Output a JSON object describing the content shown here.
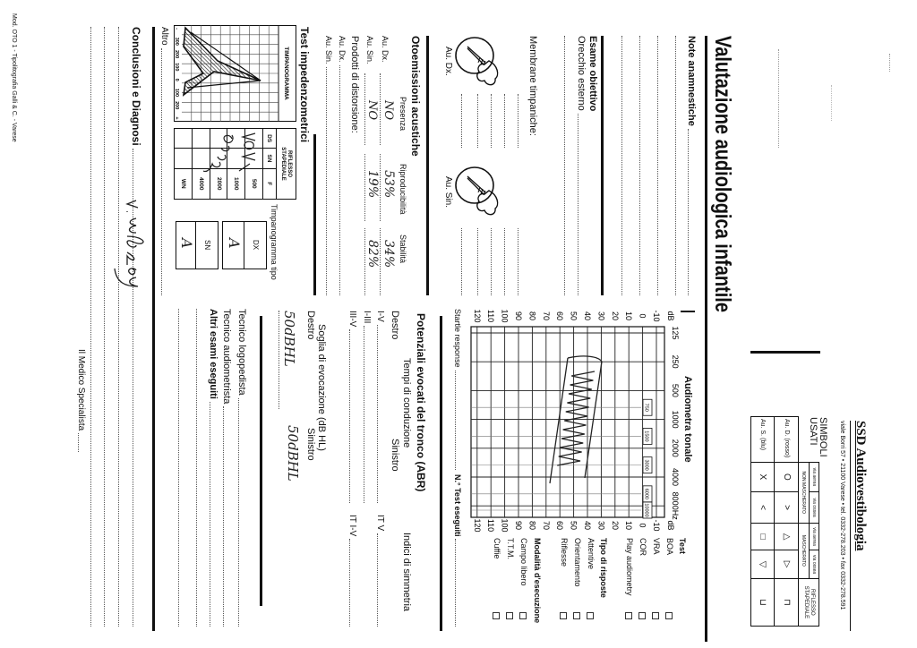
{
  "form_code": "Mod. OTO 1 - Tipolitografia Galli & C. - Varese",
  "header": {
    "department": "SSD Audiovestibologia",
    "address": "viale Borri 57 • 21100 Varese • tel. 0332-278.203 • fax 0332-278.591"
  },
  "title": "Valutazione audiologica infantile",
  "symbols": {
    "title_1": "SIMBOLI",
    "title_2": "USATI",
    "via_aerea": "via aerea",
    "via_ossea": "via ossea",
    "non_masked": "NON MASCHERATO",
    "masked": "MASCHERATO",
    "reflex_1": "RIFLESSO",
    "reflex_2": "STAPEDIALE",
    "rows": [
      {
        "label": "Au. D. (rosso)",
        "symbols": [
          "O",
          ">",
          "△",
          "▷",
          "⊓"
        ]
      },
      {
        "label": "Au. S. (blu)",
        "symbols": [
          "X",
          "<",
          "□",
          "▽",
          "⊔"
        ]
      }
    ]
  },
  "anamnesis": {
    "label": "Note anamnestiche"
  },
  "exam": {
    "title": "Esame obiettivo",
    "outer_ear": "Orecchio esterno",
    "membranes": "Membrane timpaniche:",
    "right": "Au. Dx.",
    "left": "Au. Sin."
  },
  "oae": {
    "title": "Otoemissioni acustiche",
    "cols": [
      "Presenza",
      "Riproducibilità",
      "Stabilità"
    ],
    "rows": [
      {
        "label": "Au. Dx.",
        "presence": "NO",
        "reproducibility": "53%",
        "stability": "34%"
      },
      {
        "label": "Au. Sin.",
        "presence": "NO",
        "reproducibility": "19%",
        "stability": "82%"
      }
    ],
    "dp_title": "Prodotti di distorsione:",
    "dp_rows": [
      "Au. Dx.",
      "Au. Sin."
    ]
  },
  "impedance": {
    "title": "Test impedenzometrici",
    "tympanogram_label": "TIMPANOGRAMMA",
    "tympanogram_axis": [
      "-",
      "300",
      "200",
      "100",
      "0",
      "100",
      "200",
      "+"
    ],
    "reflex_header_1": "RIFLESSO",
    "reflex_header_2": "STAPEDIALE",
    "reflex_cols": [
      "DS",
      "SN",
      "F"
    ],
    "reflex_freqs": [
      "500",
      "1000",
      "2000",
      "4000",
      "WN"
    ],
    "type_label": "Timpanogramma tipo",
    "type": [
      {
        "ear": "DX",
        "value": "A"
      },
      {
        "ear": "SN",
        "value": "A"
      }
    ],
    "other": "Altro"
  },
  "conclusions": {
    "title": "Conclusioni e Diagnosi",
    "signature_label": "Il Medico Specialista"
  },
  "audiometry": {
    "title": "Audiometra tonale",
    "freqs": [
      "125",
      "250",
      "500",
      "1000",
      "2000",
      "4000",
      "8000Hz"
    ],
    "sub_freqs": [
      "750",
      "1500",
      "3000",
      "6000",
      "10000"
    ],
    "db_unit": "dB",
    "db_ticks": [
      -10,
      0,
      10,
      20,
      30,
      40,
      50,
      60,
      70,
      80,
      90,
      100,
      110,
      120
    ],
    "test": {
      "title": "Test",
      "items": [
        "BOA",
        "VRA",
        "COR",
        "Play audiometry"
      ]
    },
    "response": {
      "title": "Tipo di risposte",
      "items": [
        "Attentive",
        "Orientamento",
        "Riflesse"
      ]
    },
    "mode": {
      "title": "Modalità d'esecuzione",
      "items": [
        "Campo libero",
        "T.T.M.",
        "Cuffie"
      ]
    },
    "startle": "Startle response",
    "tests_count": "N.° Test eseguiti"
  },
  "abr": {
    "title": "Potenziali evocati del tronco (ABR)",
    "conduction": "Tempi di conduzione",
    "symmetry": "Indici di simmetria",
    "right": "Destro",
    "left": "Sinistro",
    "rows": [
      "I-V",
      "I-III",
      "III-V"
    ],
    "sym_rows": [
      "IT V",
      "IT I-V"
    ],
    "threshold_title": "Soglia di evocazione (dB HL)",
    "threshold_right": "50dBHL",
    "threshold_left": "50dBHL"
  },
  "staff": {
    "speech": "Tecnico logopedista",
    "audiometrist": "Tecnico audiometrista",
    "other_exams": "Altri esami eseguiti"
  }
}
